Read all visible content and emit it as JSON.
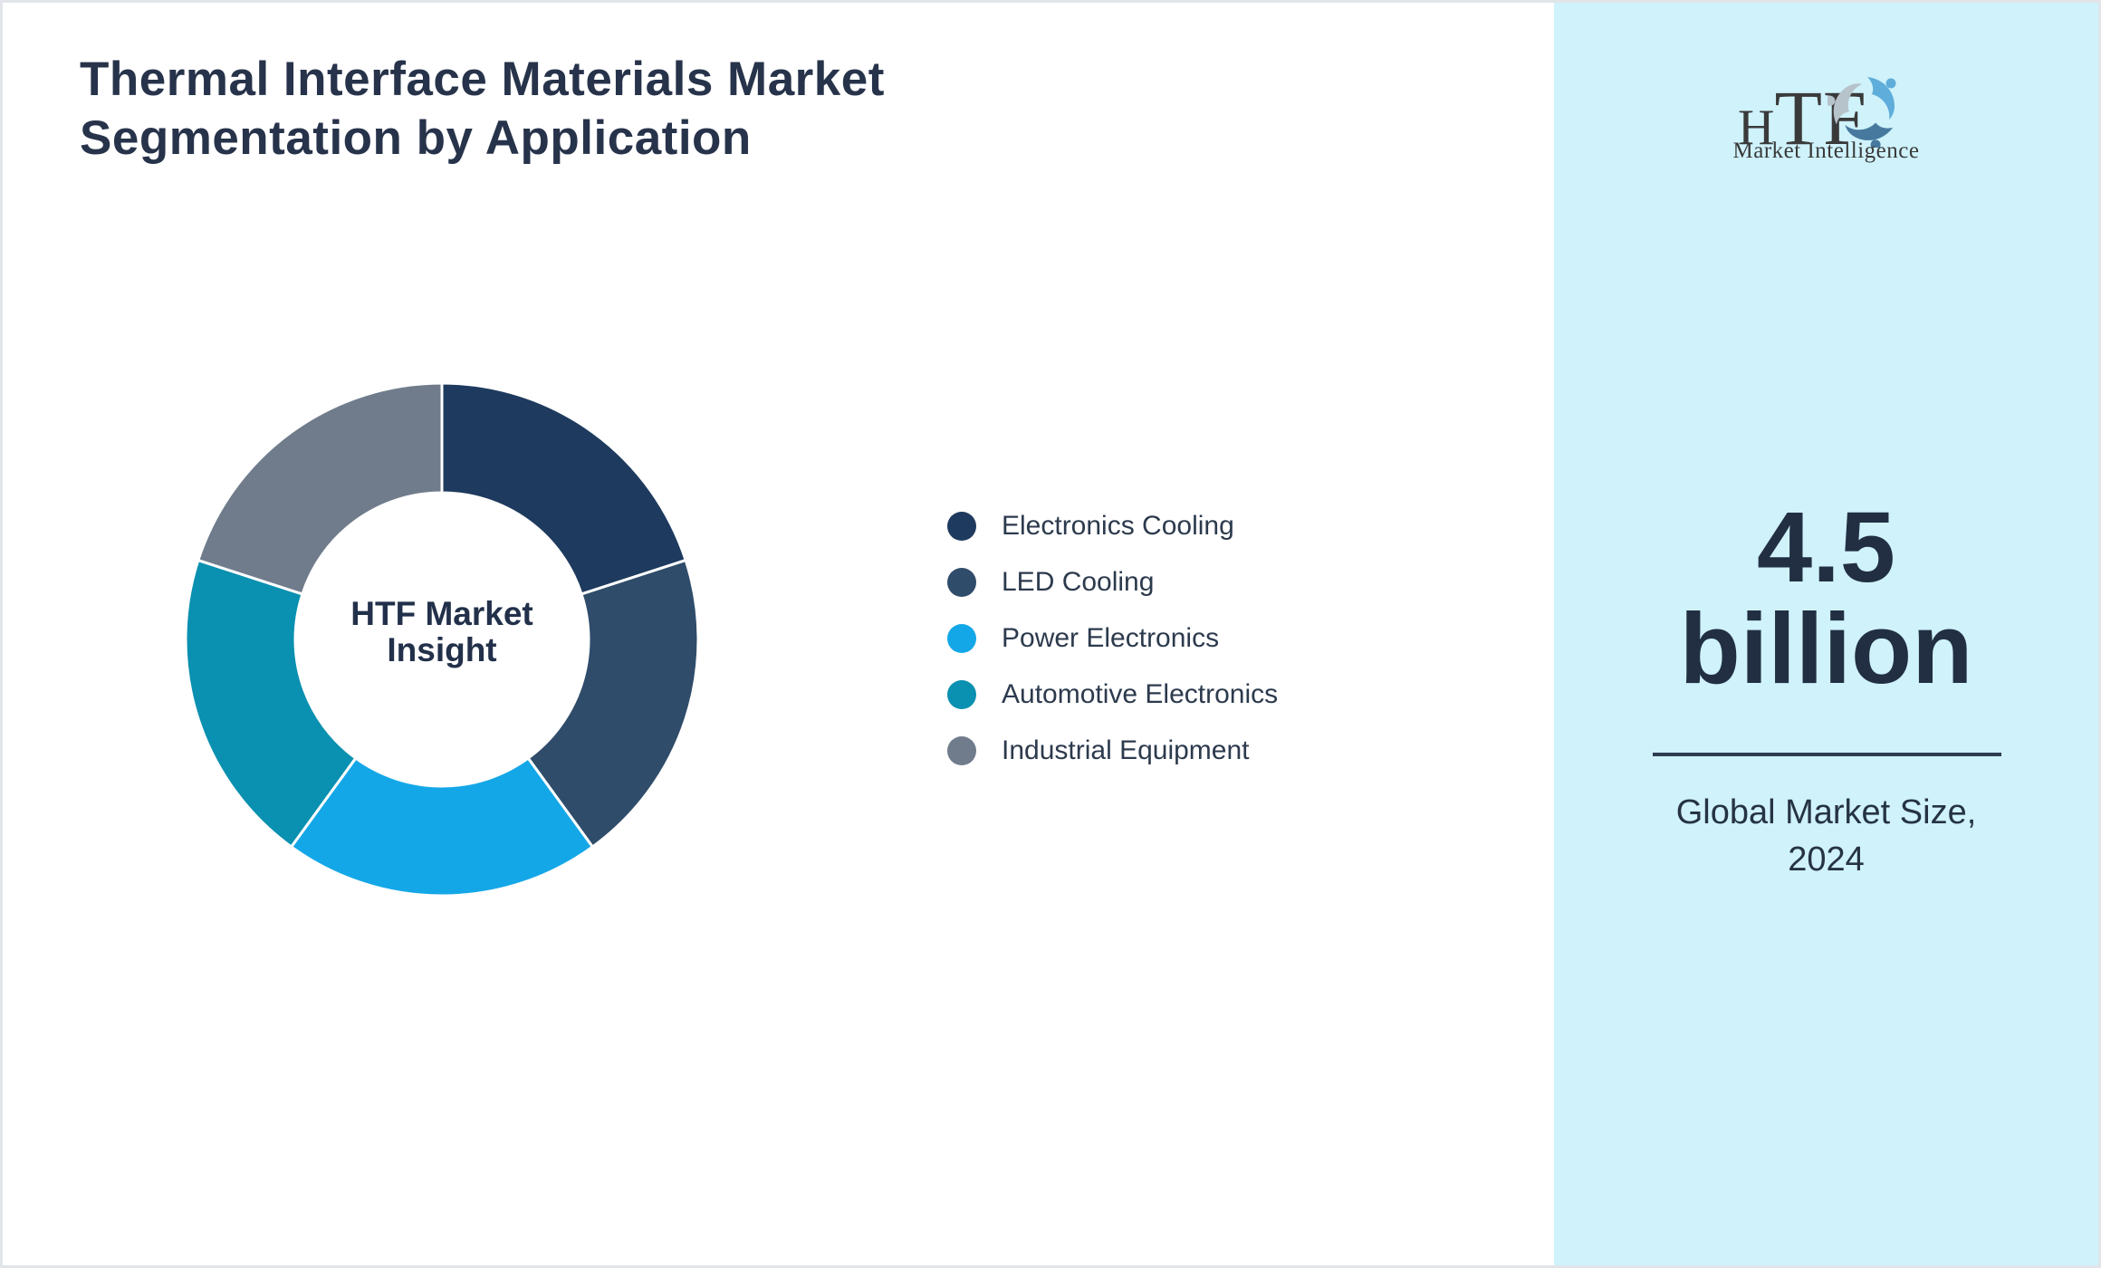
{
  "page": {
    "background": "#ffffff",
    "border_color": "#e1e4e9"
  },
  "header": {
    "title_line1": "Thermal Interface Materials Market",
    "title_line2": "Segmentation by Application"
  },
  "chart_data": {
    "type": "pie",
    "donut": true,
    "title": "Thermal Interface Materials Market Segmentation by Application",
    "center_label_line1": "HTF Market",
    "center_label_line2": "Insight",
    "categories": [
      "Electronics Cooling",
      "LED Cooling",
      "Power Electronics",
      "Automotive Electronics",
      "Industrial Equipment"
    ],
    "values": [
      20,
      20,
      20,
      20,
      20
    ],
    "colors": [
      "#1e3a5e",
      "#2f4c6a",
      "#14a7e8",
      "#0a90b0",
      "#707c8c"
    ],
    "start_angle_deg": 0,
    "legend_position": "right",
    "slice_gap_color": "#ffffff"
  },
  "sidebar": {
    "background": "#cff2fb",
    "logo": {
      "text_part1": "H",
      "text_part2": "TF",
      "tagline": "Market Intelligence",
      "swirl_colors": [
        "#5fadda",
        "#47799f",
        "#b7c3cb"
      ]
    },
    "stat": {
      "value_line1": "4.5",
      "value_line2": "billion",
      "caption_line1": "Global Market Size,",
      "caption_line2": "2024"
    }
  }
}
